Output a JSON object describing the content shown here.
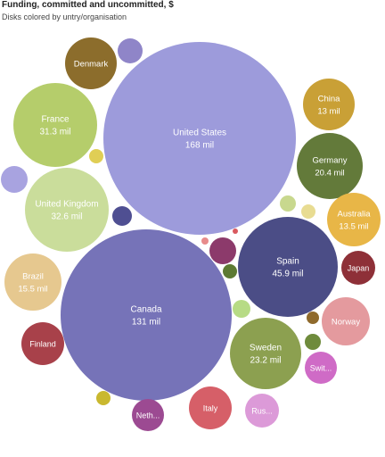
{
  "chart_data": {
    "type": "bubble",
    "title": "Funding, committed and uncommitted, $",
    "subtitle": "Disks colored by untry/organisation",
    "bubbles": [
      {
        "name": "United States",
        "value": "168 mil",
        "amount": 168,
        "color": "#9d9bdb",
        "label": true
      },
      {
        "name": "Canada",
        "value": "131 mil",
        "amount": 131,
        "color": "#7673b8",
        "label": true
      },
      {
        "name": "Spain",
        "value": "45.9 mil",
        "amount": 45.9,
        "color": "#4b4d86",
        "label": true
      },
      {
        "name": "United Kingdom",
        "value": "32.6 mil",
        "amount": 32.6,
        "color": "#cadd9b",
        "label": true
      },
      {
        "name": "France",
        "value": "31.3 mil",
        "amount": 31.3,
        "color": "#b5cd6b",
        "label": true
      },
      {
        "name": "Sweden",
        "value": "23.2 mil",
        "amount": 23.2,
        "color": "#8ca050",
        "label": true
      },
      {
        "name": "Germany",
        "value": "20.4 mil",
        "amount": 20.4,
        "color": "#637a3a",
        "label": true
      },
      {
        "name": "Brazil",
        "value": "15.5 mil",
        "amount": 15.5,
        "color": "#e6c88f",
        "label": true
      },
      {
        "name": "Australia",
        "value": "13.5 mil",
        "amount": 13.5,
        "color": "#e8b647",
        "label": true
      },
      {
        "name": "China",
        "value": "13 mil",
        "amount": 13,
        "color": "#c9a036",
        "label": true
      },
      {
        "name": "Denmark",
        "value": "",
        "amount": null,
        "color": "#8c6d2c",
        "label": true
      },
      {
        "name": "Norway",
        "value": "",
        "amount": null,
        "color": "#e49a9e",
        "label": true
      },
      {
        "name": "Finland",
        "value": "",
        "amount": null,
        "color": "#a8414a",
        "label": true
      },
      {
        "name": "Italy",
        "value": "",
        "amount": null,
        "color": "#d65f68",
        "label": true
      },
      {
        "name": "Japan",
        "value": "",
        "amount": null,
        "color": "#8e3038",
        "label": true
      },
      {
        "name": "Swit...",
        "value": "",
        "amount": null,
        "color": "#cf6bc6",
        "label": true
      },
      {
        "name": "Rus...",
        "value": "",
        "amount": null,
        "color": "#dc9ad8",
        "label": true
      },
      {
        "name": "Neth...",
        "value": "",
        "amount": null,
        "color": "#9c4a92",
        "label": true
      },
      {
        "name": "",
        "value": "",
        "amount": null,
        "color": "#8f85c8",
        "label": false
      },
      {
        "name": "",
        "value": "",
        "amount": null,
        "color": "#a8a3e0",
        "label": false
      },
      {
        "name": "",
        "value": "",
        "amount": null,
        "color": "#4f4f92",
        "label": false
      },
      {
        "name": "",
        "value": "",
        "amount": null,
        "color": "#8c3a6b",
        "label": false
      },
      {
        "name": "",
        "value": "",
        "amount": null,
        "color": "#5d7a33",
        "label": false
      },
      {
        "name": "",
        "value": "",
        "amount": null,
        "color": "#b7db85",
        "label": false
      },
      {
        "name": "",
        "value": "",
        "amount": null,
        "color": "#c8d88e",
        "label": false
      },
      {
        "name": "",
        "value": "",
        "amount": null,
        "color": "#e8dc92",
        "label": false
      },
      {
        "name": "",
        "value": "",
        "amount": null,
        "color": "#e0ce55",
        "label": false
      },
      {
        "name": "",
        "value": "",
        "amount": null,
        "color": "#8f6a2c",
        "label": false
      },
      {
        "name": "",
        "value": "",
        "amount": null,
        "color": "#6f8b3c",
        "label": false
      },
      {
        "name": "",
        "value": "",
        "amount": null,
        "color": "#c9b82f",
        "label": false
      },
      {
        "name": "",
        "value": "",
        "amount": null,
        "color": "#e88b8b",
        "label": false
      },
      {
        "name": "",
        "value": "",
        "amount": null,
        "color": "#d9595f",
        "label": false
      }
    ]
  }
}
